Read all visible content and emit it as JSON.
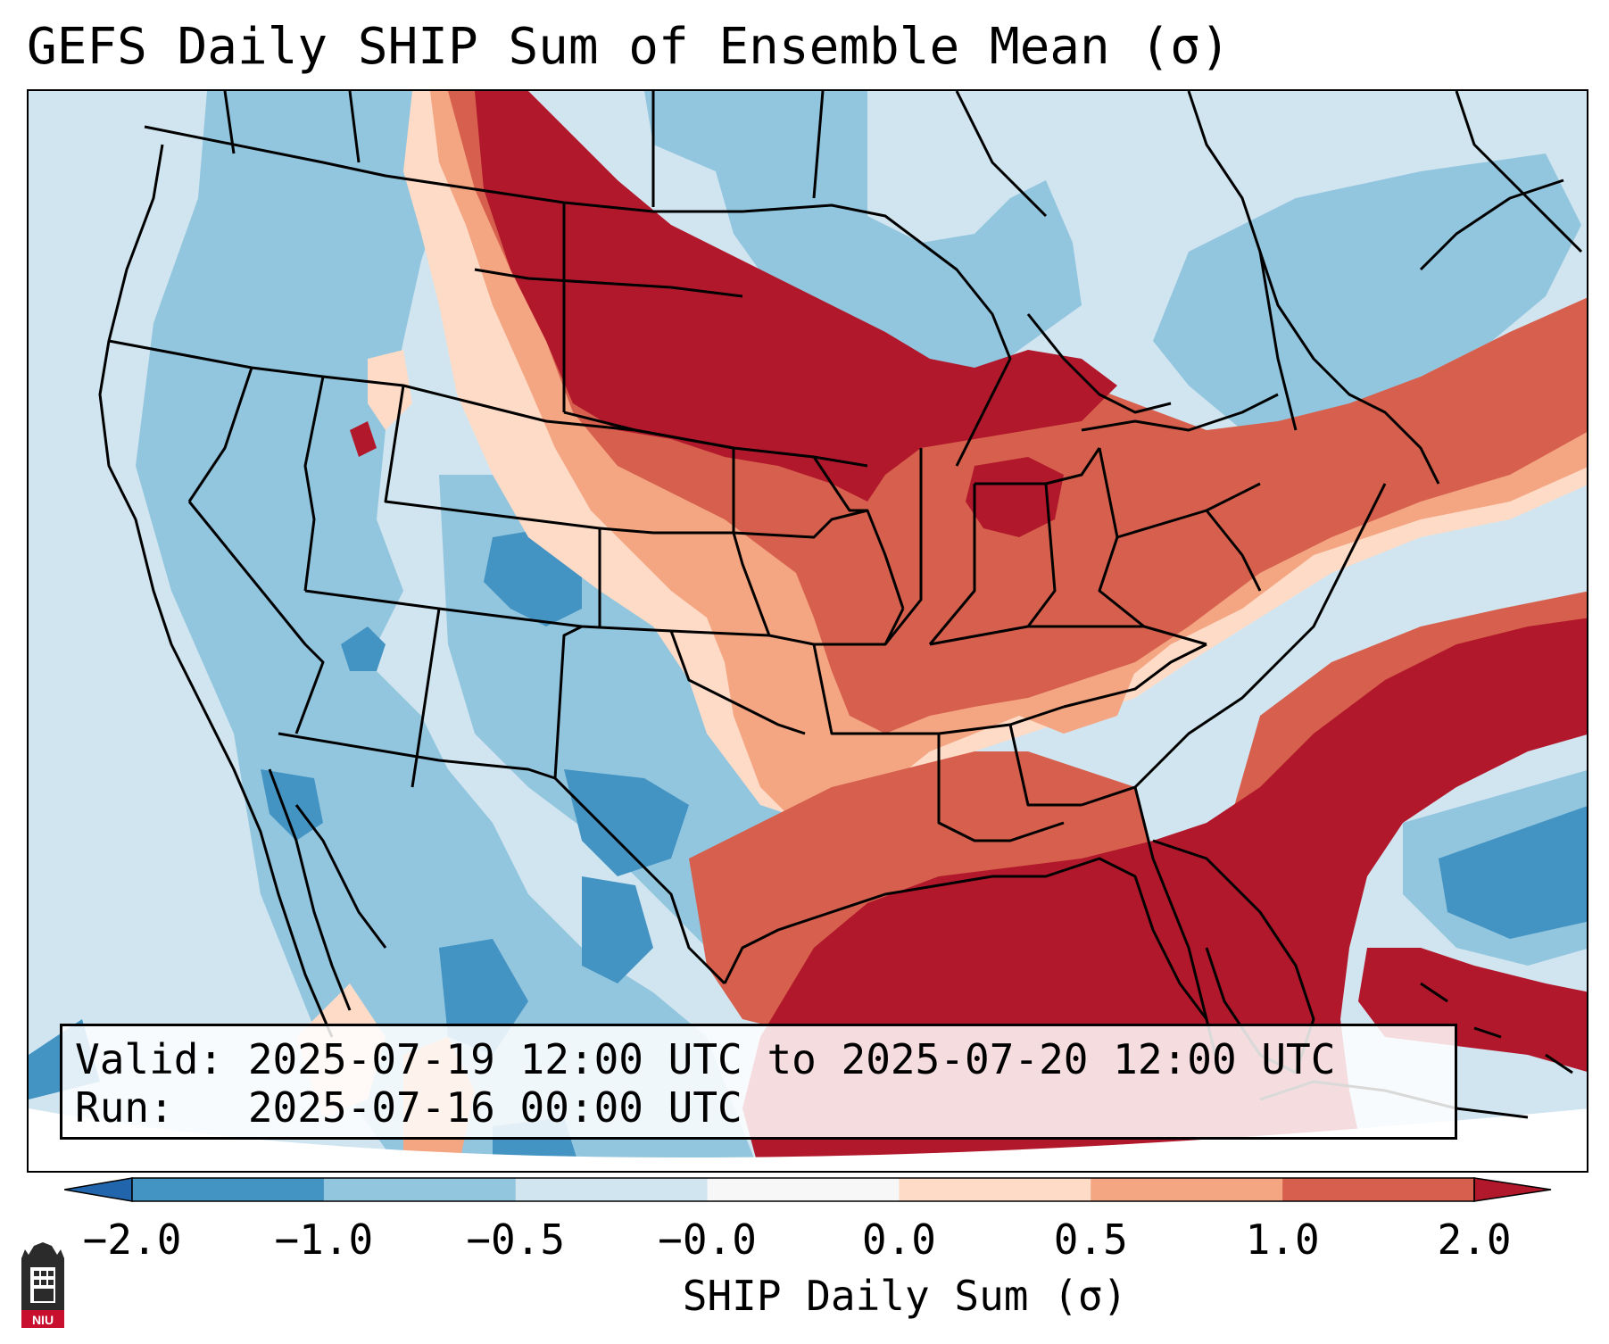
{
  "title": "GEFS Daily SHIP Sum of Ensemble Mean (σ)",
  "info": {
    "valid_line": "Valid: 2025-07-19 12:00 UTC to 2025-07-20 12:00 UTC",
    "run_line": "Run:   2025-07-16 00:00 UTC"
  },
  "colorbar": {
    "label": "SHIP Daily Sum (σ)",
    "ticks": [
      "−2.0",
      "−1.0",
      "−0.5",
      "−0.0",
      "0.0",
      "0.5",
      "1.0",
      "2.0"
    ],
    "bins": [
      {
        "range": "< -2.0",
        "color": "#2166ac"
      },
      {
        "range": "-2.0 to -1.0",
        "color": "#4393c3"
      },
      {
        "range": "-1.0 to -0.5",
        "color": "#92c5de"
      },
      {
        "range": "-0.5 to -0.0",
        "color": "#d1e5f0"
      },
      {
        "range": "-0.0 to 0.0",
        "color": "#f7f7f7"
      },
      {
        "range": "0.0 to 0.5",
        "color": "#fddbc7"
      },
      {
        "range": "0.5 to 1.0",
        "color": "#f4a582"
      },
      {
        "range": "1.0 to 2.0",
        "color": "#d6604d"
      },
      {
        "range": "> 2.0",
        "color": "#b2182b"
      }
    ],
    "extend": "both"
  },
  "logo": {
    "icon": "niu-logo-icon",
    "text": "NIU"
  },
  "map": {
    "projection": "conic",
    "region": "Contiguous United States, southern Canada, northern Mexico, Gulf of Mexico, western Atlantic",
    "borders": [
      "coastlines",
      "country borders",
      "US state borders",
      "Great Lakes"
    ]
  }
}
